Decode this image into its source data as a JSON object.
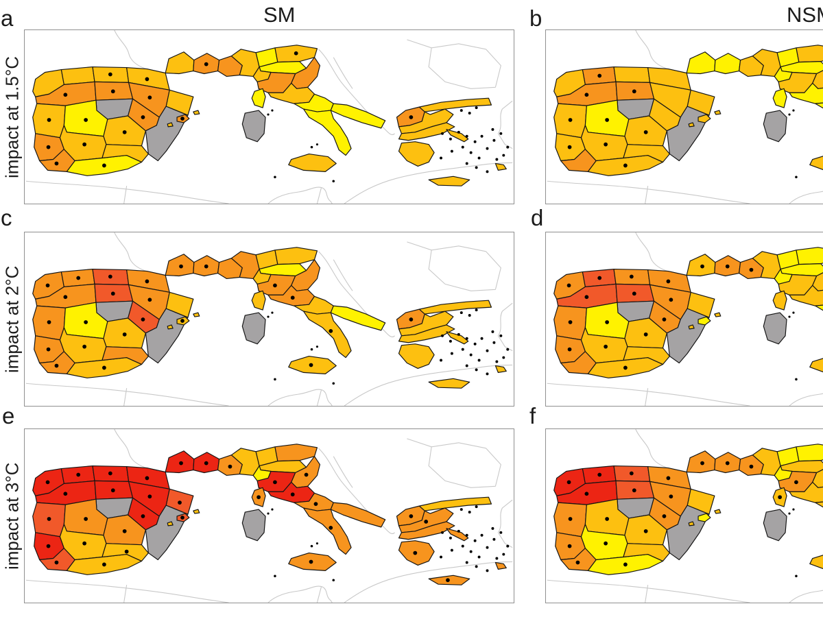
{
  "figure": {
    "column_titles": [
      "SM",
      "NSM"
    ],
    "row_labels": [
      "impact at 1.5°C",
      "impact at 2°C",
      "impact at 3°C"
    ],
    "palette": {
      "yellow": "#FFF200",
      "amber": "#FDC010",
      "orange": "#F7941E",
      "darkorange": "#F1592A",
      "red": "#EC2514",
      "nodata": "#A5A3A4"
    },
    "map_style": {
      "region_border": "#151515",
      "coastline": "#c8c8c8",
      "dot_color": "#000000",
      "sea": "#ffffff"
    }
  },
  "panels": [
    {
      "letter": "a",
      "column": "SM",
      "row_label": "impact at 1.5°C",
      "region_colors": {
        "frA": "amber",
        "frB": "orange",
        "frC": "orange",
        "it1": "amber",
        "it2": "yellow",
        "it3": "amber",
        "it4": "yellow",
        "it5": "amber",
        "it6": "orange",
        "it7": "orange",
        "it8": "amber",
        "it9": "yellow",
        "it10": "yellow",
        "it11": "yellow",
        "corsica": "yellow",
        "sardinia": "nodata",
        "sicily": "amber",
        "ib01": "amber",
        "ib02": "amber",
        "ib03": "amber",
        "ib04": "amber",
        "ib05": "amber",
        "ib06": "orange",
        "ib07": "orange",
        "ib08": "orange",
        "ib09": "nodata",
        "ib10": "amber",
        "ib11": "yellow",
        "ib12": "amber",
        "ib13": "orange",
        "ib14": "orange",
        "ib15": "orange",
        "ib16": "amber",
        "ib17": "yellow",
        "ib18": "amber",
        "ibSE": "nodata",
        "bal1": "orange",
        "bal2": "amber",
        "bal3": "amber",
        "gr1": "orange",
        "gr2": "amber",
        "gr3": "amber",
        "gr4": "amber",
        "gr5": "amber",
        "gr6": "amber",
        "evia": "amber",
        "aeg1": "amber"
      },
      "dots": [
        "ib03",
        "ib04",
        "ib06",
        "ib07",
        "ib08",
        "ib10",
        "ib11",
        "ib12",
        "ib13",
        "ib14",
        "ib15",
        "ib16",
        "ib17",
        "bal1",
        "frB",
        "it3",
        "gr1"
      ]
    },
    {
      "letter": "b",
      "column": "NSM",
      "row_label": "impact at 1.5°C",
      "region_colors": {
        "frA": "yellow",
        "frB": "yellow",
        "frC": "amber",
        "it1": "amber",
        "it2": "yellow",
        "it3": "amber",
        "it4": "yellow",
        "it5": "yellow",
        "it6": "amber",
        "it7": "amber",
        "it8": "yellow",
        "it9": "yellow",
        "it10": "yellow",
        "it11": "yellow",
        "corsica": "yellow",
        "sardinia": "nodata",
        "sicily": "amber",
        "ib01": "amber",
        "ib02": "orange",
        "ib03": "amber",
        "ib04": "amber",
        "ib05": "amber",
        "ib06": "orange",
        "ib07": "orange",
        "ib08": "amber",
        "ib09": "nodata",
        "ib10": "amber",
        "ib11": "yellow",
        "ib12": "amber",
        "ib13": "amber",
        "ib14": "amber",
        "ib15": "orange",
        "ib16": "amber",
        "ib17": "amber",
        "ib18": "amber",
        "ibSE": "nodata",
        "bal1": "amber",
        "bal2": "amber",
        "bal3": "amber",
        "gr1": "amber",
        "gr2": "amber",
        "gr3": "amber",
        "gr4": "amber",
        "gr5": "amber",
        "gr6": "amber",
        "evia": "amber",
        "aeg1": "amber"
      },
      "dots": [
        "ib02",
        "ib06",
        "ib07",
        "ib10",
        "ib11",
        "ib12",
        "ib14",
        "ib16",
        "ib17"
      ]
    },
    {
      "letter": "c",
      "column": "SM",
      "row_label": "impact at 2°C",
      "region_colors": {
        "frA": "orange",
        "frB": "orange",
        "frC": "orange",
        "it1": "orange",
        "it2": "amber",
        "it3": "amber",
        "it4": "yellow",
        "it5": "amber",
        "it6": "orange",
        "it7": "orange",
        "it8": "orange",
        "it9": "amber",
        "it10": "yellow",
        "it11": "amber",
        "corsica": "amber",
        "sardinia": "nodata",
        "sicily": "amber",
        "ib01": "orange",
        "ib02": "orange",
        "ib03": "darkorange",
        "ib04": "orange",
        "ib05": "amber",
        "ib06": "orange",
        "ib07": "darkorange",
        "ib08": "orange",
        "ib09": "nodata",
        "ib10": "orange",
        "ib11": "yellow",
        "ib12": "amber",
        "ib13": "darkorange",
        "ib14": "orange",
        "ib15": "orange",
        "ib16": "amber",
        "ib17": "amber",
        "ib18": "orange",
        "ibSE": "nodata",
        "bal1": "amber",
        "bal2": "amber",
        "bal3": "amber",
        "gr1": "orange",
        "gr2": "amber",
        "gr3": "amber",
        "gr4": "amber",
        "gr5": "amber",
        "gr6": "amber",
        "evia": "amber",
        "aeg1": "amber"
      },
      "dots": [
        "ib01",
        "ib02",
        "ib03",
        "ib04",
        "ib06",
        "ib07",
        "ib08",
        "ib10",
        "ib11",
        "ib12",
        "ib13",
        "ib14",
        "ib15",
        "ib16",
        "ib17",
        "bal1",
        "frA",
        "frB",
        "it6",
        "it8",
        "it11",
        "sicily",
        "gr1"
      ]
    },
    {
      "letter": "d",
      "column": "NSM",
      "row_label": "impact at 2°C",
      "region_colors": {
        "frA": "amber",
        "frB": "orange",
        "frC": "orange",
        "it1": "amber",
        "it2": "yellow",
        "it3": "yellow",
        "it4": "yellow",
        "it5": "yellow",
        "it6": "amber",
        "it7": "amber",
        "it8": "amber",
        "it9": "yellow",
        "it10": "yellow",
        "it11": "amber",
        "corsica": "amber",
        "sardinia": "nodata",
        "sicily": "amber",
        "ib01": "orange",
        "ib02": "darkorange",
        "ib03": "orange",
        "ib04": "orange",
        "ib05": "amber",
        "ib06": "darkorange",
        "ib07": "darkorange",
        "ib08": "orange",
        "ib09": "nodata",
        "ib10": "orange",
        "ib11": "yellow",
        "ib12": "amber",
        "ib13": "orange",
        "ib14": "orange",
        "ib15": "orange",
        "ib16": "amber",
        "ib17": "amber",
        "ib18": "amber",
        "ibSE": "nodata",
        "bal1": "yellow",
        "bal2": "amber",
        "bal3": "amber",
        "gr1": "amber",
        "gr2": "amber",
        "gr3": "amber",
        "gr4": "amber",
        "gr5": "amber",
        "gr6": "amber",
        "evia": "amber",
        "aeg1": "amber"
      },
      "dots": [
        "ib01",
        "ib02",
        "ib03",
        "ib04",
        "ib06",
        "ib07",
        "ib08",
        "ib10",
        "ib11",
        "ib12",
        "ib13",
        "ib14",
        "ib16",
        "ib17",
        "frA",
        "frB",
        "frC"
      ]
    },
    {
      "letter": "e",
      "column": "SM",
      "row_label": "impact at 3°C",
      "region_colors": {
        "frA": "red",
        "frB": "red",
        "frC": "orange",
        "it1": "amber",
        "it2": "amber",
        "it3": "orange",
        "it4": "amber",
        "it5": "yellow",
        "it6": "red",
        "it7": "orange",
        "it8": "red",
        "it9": "orange",
        "it10": "orange",
        "it11": "orange",
        "corsica": "orange",
        "sardinia": "nodata",
        "sicily": "orange",
        "ib01": "red",
        "ib02": "red",
        "ib03": "red",
        "ib04": "red",
        "ib05": "darkorange",
        "ib06": "red",
        "ib07": "red",
        "ib08": "red",
        "ib09": "nodata",
        "ib10": "darkorange",
        "ib11": "orange",
        "ib12": "orange",
        "ib13": "red",
        "ib14": "red",
        "ib15": "darkorange",
        "ib16": "amber",
        "ib17": "amber",
        "ib18": "amber",
        "ibSE": "nodata",
        "bal1": "darkorange",
        "bal2": "amber",
        "bal3": "amber",
        "gr1": "orange",
        "gr2": "amber",
        "gr3": "orange",
        "gr4": "orange",
        "gr5": "orange",
        "gr6": "orange",
        "evia": "orange",
        "aeg1": "orange"
      },
      "dots": [
        "ib01",
        "ib02",
        "ib03",
        "ib04",
        "ib05",
        "ib06",
        "ib07",
        "ib08",
        "ib10",
        "ib11",
        "ib12",
        "ib13",
        "ib14",
        "ib15",
        "ib16",
        "ib17",
        "ib18",
        "bal1",
        "frA",
        "frB",
        "frC",
        "it6",
        "it7",
        "it8",
        "it9",
        "it11",
        "sicily",
        "corsica",
        "gr1",
        "gr3",
        "gr5",
        "gr6"
      ]
    },
    {
      "letter": "f",
      "column": "NSM",
      "row_label": "impact at 3°C",
      "region_colors": {
        "frA": "orange",
        "frB": "orange",
        "frC": "orange",
        "it1": "amber",
        "it2": "yellow",
        "it3": "yellow",
        "it4": "amber",
        "it5": "yellow",
        "it6": "orange",
        "it7": "amber",
        "it8": "amber",
        "it9": "amber",
        "it10": "amber",
        "it11": "amber",
        "corsica": "amber",
        "sardinia": "nodata",
        "sicily": "amber",
        "ib01": "red",
        "ib02": "red",
        "ib03": "darkorange",
        "ib04": "orange",
        "ib05": "amber",
        "ib06": "red",
        "ib07": "darkorange",
        "ib08": "orange",
        "ib09": "nodata",
        "ib10": "orange",
        "ib11": "amber",
        "ib12": "amber",
        "ib13": "orange",
        "ib14": "orange",
        "ib15": "orange",
        "ib16": "yellow",
        "ib17": "yellow",
        "ib18": "amber",
        "ibSE": "nodata",
        "bal1": "yellow",
        "bal2": "amber",
        "bal3": "amber",
        "gr1": "orange",
        "gr2": "amber",
        "gr3": "amber",
        "gr4": "orange",
        "gr5": "orange",
        "gr6": "amber",
        "evia": "amber",
        "aeg1": "amber"
      },
      "dots": [
        "ib01",
        "ib02",
        "ib03",
        "ib04",
        "ib06",
        "ib07",
        "ib08",
        "ib10",
        "ib11",
        "ib12",
        "ib13",
        "ib14",
        "ib15",
        "ib16",
        "ib17",
        "frA",
        "frB",
        "frC",
        "it6",
        "corsica"
      ]
    }
  ]
}
